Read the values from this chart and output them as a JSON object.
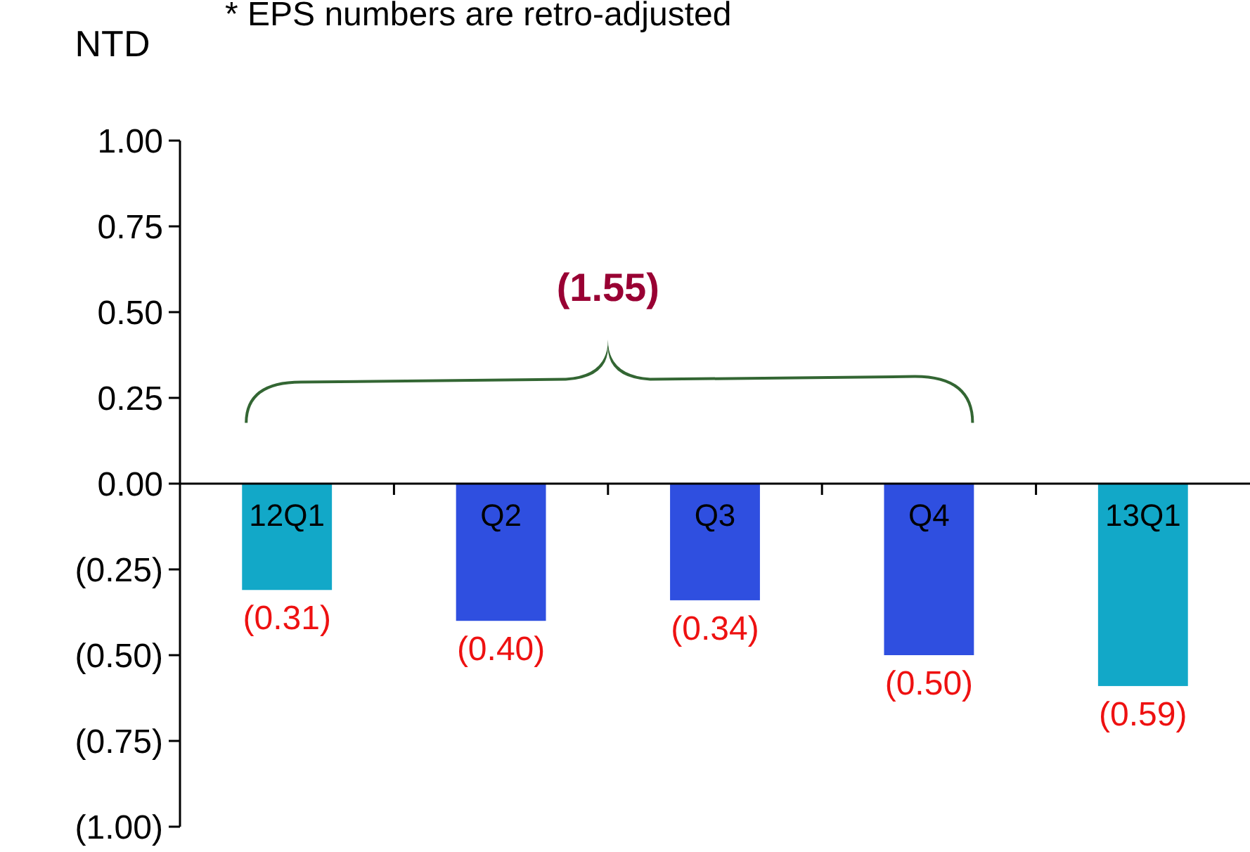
{
  "chart_data": {
    "type": "bar",
    "ylabel": "NTD",
    "subtitle": "* EPS numbers are retro-adjusted",
    "categories": [
      "12Q1",
      "Q2",
      "Q3",
      "Q4",
      "13Q1"
    ],
    "values": [
      -0.31,
      -0.4,
      -0.34,
      -0.5,
      -0.59
    ],
    "colors": [
      "#12a8c8",
      "#2f4fe0",
      "#2f4fe0",
      "#2f4fe0",
      "#12a8c8"
    ],
    "value_labels": [
      "(0.31)",
      "(0.40)",
      "(0.34)",
      "(0.50)",
      "(0.59)"
    ],
    "ylim": [
      -1,
      1
    ],
    "yticks": [
      {
        "value": 1,
        "label": "1.00"
      },
      {
        "value": 0.75,
        "label": "0.75"
      },
      {
        "value": 0.5,
        "label": "0.50"
      },
      {
        "value": 0.25,
        "label": "0.25"
      },
      {
        "value": 0,
        "label": "0.00"
      },
      {
        "value": -0.25,
        "label": "(0.25)"
      },
      {
        "value": -0.5,
        "label": "(0.50)"
      },
      {
        "value": -0.75,
        "label": "(0.75)"
      },
      {
        "value": -1,
        "label": "(1.00)"
      }
    ],
    "annotations": [
      "(1.55)"
    ],
    "grid": false
  }
}
